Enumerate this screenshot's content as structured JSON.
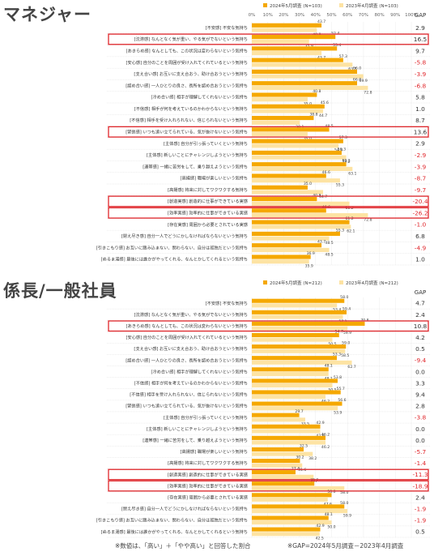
{
  "sections": [
    {
      "title": "マネジャー",
      "legend": {
        "current": "2024年5月調査 (N=103)",
        "previous": "2023年4月調査 (N=103)"
      },
      "gap_header": "GAP"
    },
    {
      "title": "係長/一般社員",
      "legend": {
        "current": "2024年5月調査 (N=212)",
        "previous": "2023年4月調査 (N=212)"
      },
      "gap_header": "GAP"
    }
  ],
  "notes": {
    "left": "※数値は、「高い」＋「やや高い」と回答した割合",
    "right": "※GAP=2024年5月調査－2023年4月調査"
  },
  "colors": {
    "current": "#f5a800",
    "previous": "#fde3a3",
    "highlight": "#e0262b",
    "negative": "#e0262b"
  },
  "chart_data": [
    {
      "type": "bar",
      "title": "マネジャー",
      "xlim": [
        0,
        100
      ],
      "xticks": [
        "0%",
        "10%",
        "20%",
        "30%",
        "40%",
        "50%",
        "60%",
        "70%",
        "80%",
        "90%",
        "100%"
      ],
      "categories": [
        "[不安感] 不安な気持ち",
        "[沈滞感] なんとなく気が重い、やる気がでないという気持ち",
        "[あきらめ感] なんとしても、この状況は変わらないという気持ち",
        "[安心感] 自分のことを周囲が受け入れてくれているという気持ち",
        "[支え合い感] お互いに支え合おう、助け合おうという気持ち",
        "[認め合い感] 一人ひとりの良さ、長所を認め合おうという気持ち",
        "[冷め合い感] 相手が理解してくれないという気持ち",
        "[不信感] 相手が何を考えているのかわからないという気持ち",
        "[不信感] 相手を受け入れられない、信じられないという気持ち",
        "[緊張感] いつも追い立てられている、気が抜けないという気持ち",
        "[主体感] 自分が引っ張っていくという気持ち",
        "[主体感] 新しいことにチャレンジしようという気持ち",
        "[連帯感] 一緒に苦労をして、乗り越えようという気持ち",
        "[高揚感] 職場が楽しいという気持ち",
        "[高揚感] 将来に対してワクワクする気持ち",
        "[創造実感] 創造的に仕事ができている実感",
        "[効率実感] 効率的に仕事ができている実感",
        "[存在実感] 周囲から必要とされている実感",
        "[閉え尽き感] 自分一人でどうにかしなければならないという気持ち",
        "[引きこもり感] お互いに踏み込まない、関わらない、自分は孤独だという気持ち",
        "[ぬるま湯感] 最後には誰かがやってくれる、なんとかしてくれるという気持ち"
      ],
      "series": [
        {
          "name": "2024年5月調査 (N=103)",
          "values": [
            43.7,
            52.4,
            53.4,
            57.3,
            66.0,
            66.0,
            40.8,
            45.6,
            38.8,
            48.5,
            57.3,
            56.3,
            59.2,
            46.6,
            35.0,
            40.8,
            46.6,
            61.2,
            55.3,
            43.7,
            36.9
          ]
        },
        {
          "name": "2023年4月調査 (N=103)",
          "values": [
            40.8,
            35.9,
            43.7,
            63.1,
            69.9,
            72.8,
            35.0,
            44.7,
            30.1,
            35.0,
            54.4,
            59.2,
            63.1,
            55.3,
            44.7,
            61.2,
            72.8,
            62.1,
            48.5,
            48.5,
            35.9
          ]
        }
      ],
      "gap": [
        "2.9",
        "16.5",
        "9.7",
        "-5.8",
        "-3.9",
        "-6.8",
        "5.8",
        "1.0",
        "8.7",
        "13.6",
        "2.9",
        "-2.9",
        "-3.9",
        "-8.7",
        "-9.7",
        "-20.4",
        "-26.2",
        "-1.0",
        "6.8",
        "-4.9",
        "1.0"
      ],
      "highlighted": [
        1,
        9,
        15,
        16
      ]
    },
    {
      "type": "bar",
      "title": "係長/一般社員",
      "xlim": [
        0,
        100
      ],
      "categories": [
        "[不安感] 不安な気持ち",
        "[沈滞感] なんとなく気が重い、やる気がでないという気持ち",
        "[あきらめ感] なんとしても、この状況は変わらないという気持ち",
        "[安心感] 自分のことを周囲が受け入れてくれているという気持ち",
        "[支え合い感] お互いに支え合おう、助け合おうという気持ち",
        "[認め合い感] 一人ひとりの良さ、長所を認め合おうという気持ち",
        "[冷め合い感] 相手が理解してくれないという気持ち",
        "[不信感] 相手が何を考えているのかわからないという気持ち",
        "[不信感] 相手を受け入れられない、信じられないという気持ち",
        "[緊張感] いつも追い立てられている、気が抜けないという気持ち",
        "[主体感] 自分が引っ張っていくという気持ち",
        "[主体感] 新しいことにチャレンジしようという気持ち",
        "[連帯感] 一緒に苦労をして、乗り越えようという気持ち",
        "[高揚感] 職場が楽しいという気持ち",
        "[高揚感] 将来に対してワクワクする気持ち",
        "[創造実感] 創造的に仕事ができている実感",
        "[効率実感] 効率的に仕事ができている実感",
        "[存在実感] 周囲から必要とされている実感",
        "[閉え尽き感] 自分一人でどうにかしなければならないという気持ち",
        "[引きこもり感] お互いに踏み込まない、関わらない、自分は孤独だという気持ち",
        "[ぬるま湯感] 最後には誰かがやってくれる、なんとかしてくれるという気持ち"
      ],
      "series": [
        {
          "name": "2024年5月調査 (N=212)",
          "values": [
            58.0,
            59.4,
            70.8,
            54.7,
            59.0,
            53.3,
            48.1,
            53.8,
            55.7,
            56.6,
            29.7,
            42.9,
            46.2,
            32.5,
            30.2,
            27.4,
            39.2,
            50.0,
            58.0,
            48.1,
            42.9
          ]
        },
        {
          "name": "2023年4月調査 (N=212)",
          "values": [
            53.4,
            57.1,
            59.9,
            50.5,
            58.5,
            62.7,
            48.1,
            50.5,
            46.2,
            53.9,
            33.5,
            42.9,
            46.2,
            38.2,
            31.6,
            38.7,
            58.0,
            47.6,
            59.9,
            50.0,
            42.5
          ]
        }
      ],
      "gap": [
        "4.7",
        "2.4",
        "10.8",
        "4.2",
        "0.5",
        "-9.4",
        "0.0",
        "3.3",
        "9.4",
        "2.8",
        "-3.8",
        "0.0",
        "0.0",
        "-5.7",
        "-1.4",
        "-11.3",
        "-18.9",
        "2.4",
        "-1.9",
        "-1.9",
        "0.5"
      ],
      "highlighted": [
        2,
        15,
        16
      ]
    }
  ]
}
